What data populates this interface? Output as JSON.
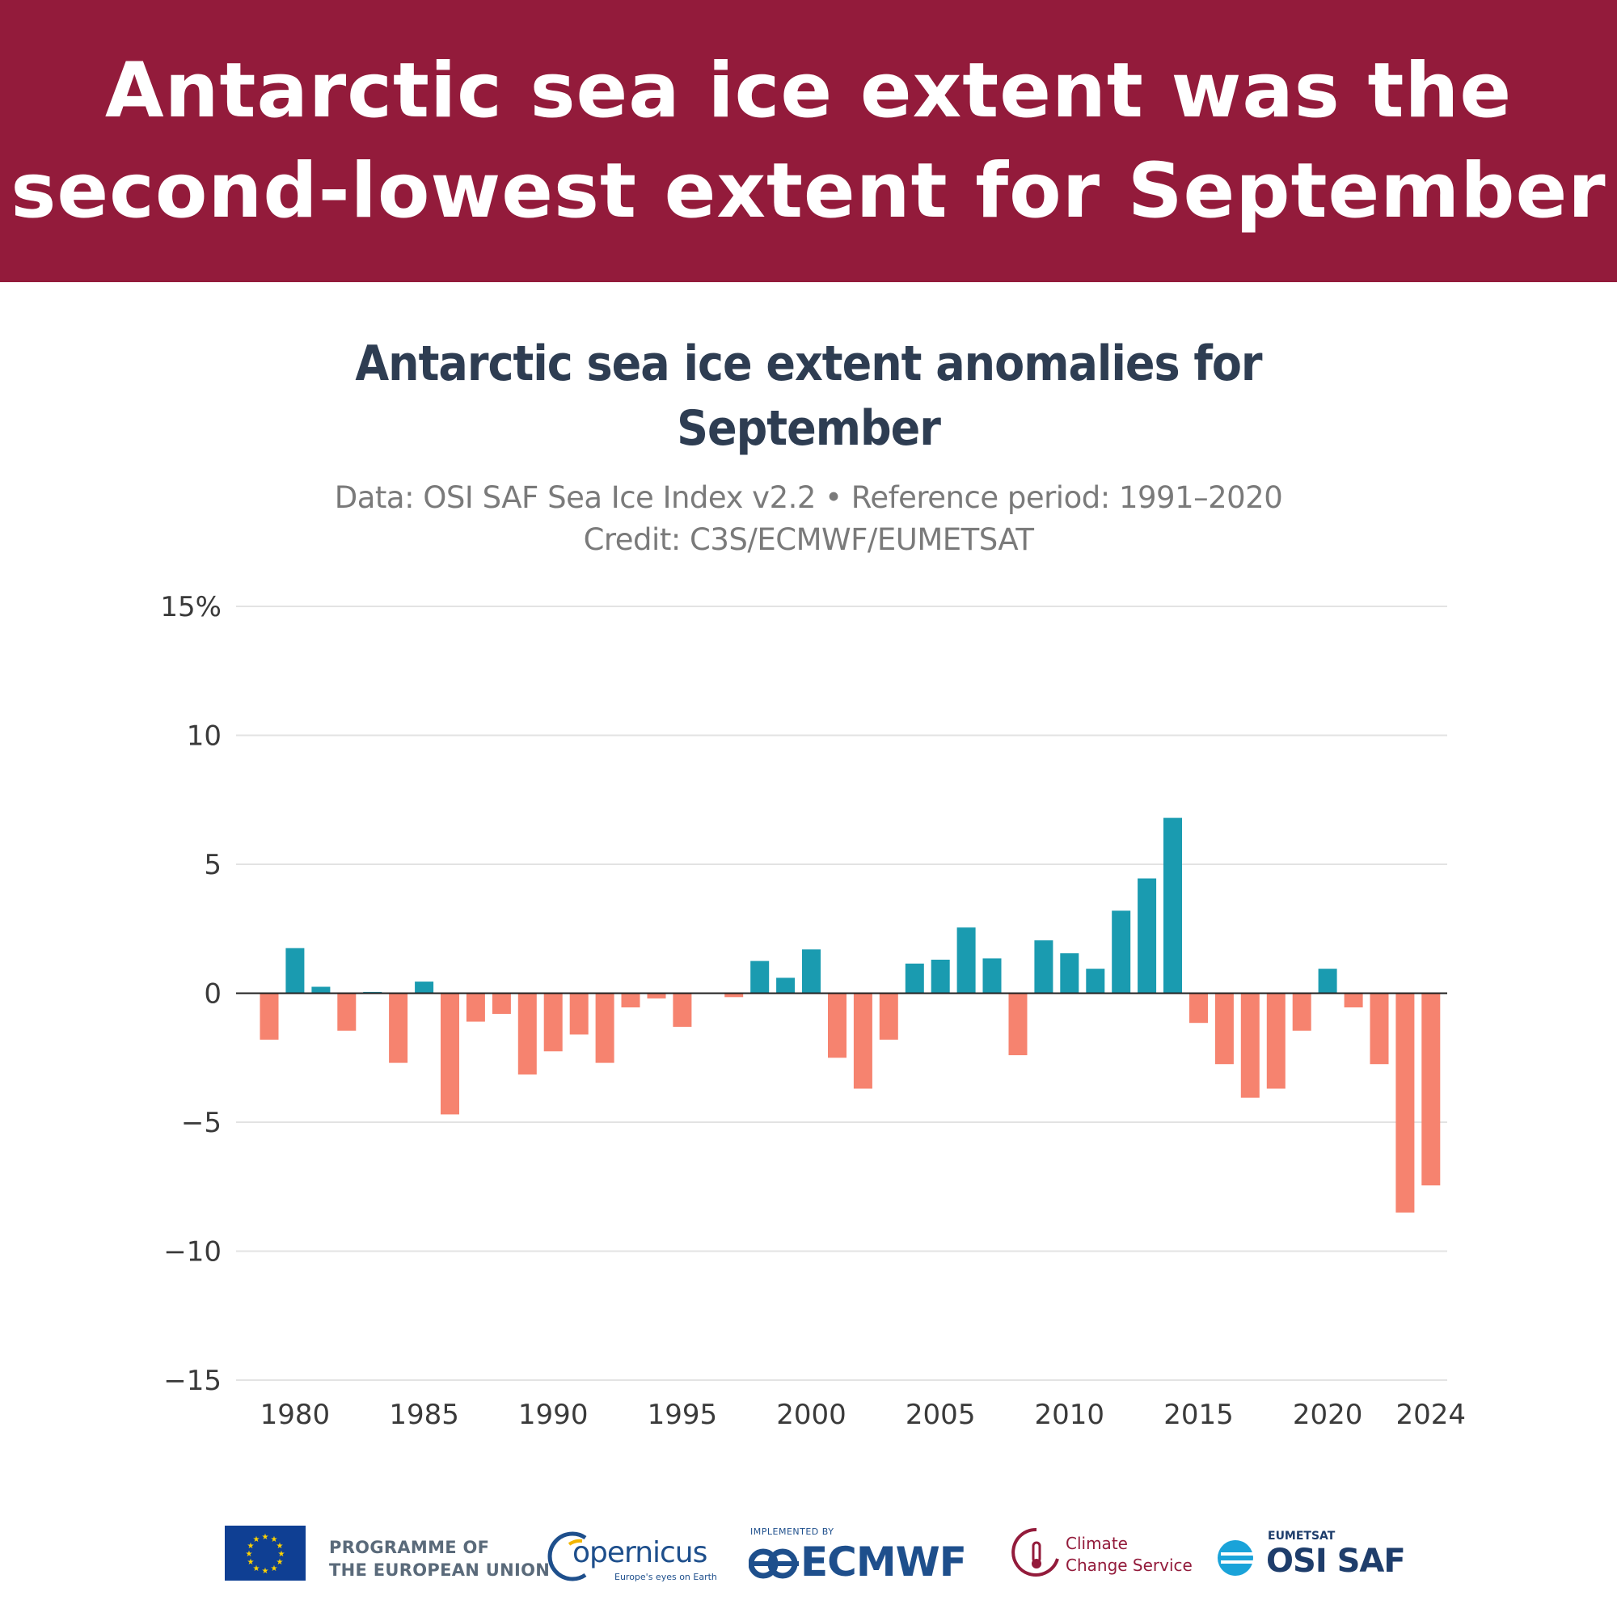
{
  "banner": {
    "line1": "Antarctic sea ice extent was the",
    "line2": "second-lowest extent for September",
    "color": "#931b3b"
  },
  "chart_data": {
    "type": "bar",
    "title_line1": "Antarctic sea ice extent anomalies for",
    "title_line2": "September",
    "subtitle_line1": "Data: OSI SAF Sea Ice Index v2.2 • Reference period: 1991–2020",
    "subtitle_line2": "Credit: C3S/ECMWF/EUMETSAT",
    "xlabel": "",
    "ylabel": "",
    "ylim": [
      -15,
      15
    ],
    "y_ticks": [
      15,
      10,
      5,
      0,
      -5,
      -10,
      -15
    ],
    "y_tick_labels": [
      "15%",
      "10",
      "5",
      "0",
      "−5",
      "−10",
      "−15"
    ],
    "x_tick_labels": [
      "1980",
      "1985",
      "1990",
      "1995",
      "2000",
      "2005",
      "2010",
      "2015",
      "2020",
      "2024"
    ],
    "positive_color": "#1a9bb0",
    "negative_color": "#f6836f",
    "categories": [
      "1979",
      "1980",
      "1981",
      "1982",
      "1983",
      "1984",
      "1985",
      "1986",
      "1987",
      "1988",
      "1989",
      "1990",
      "1991",
      "1992",
      "1993",
      "1994",
      "1995",
      "1996",
      "1997",
      "1998",
      "1999",
      "2000",
      "2001",
      "2002",
      "2003",
      "2004",
      "2005",
      "2006",
      "2007",
      "2008",
      "2009",
      "2010",
      "2011",
      "2012",
      "2013",
      "2014",
      "2015",
      "2016",
      "2017",
      "2018",
      "2019",
      "2020",
      "2021",
      "2022",
      "2023",
      "2024"
    ],
    "values": [
      -1.8,
      1.75,
      0.25,
      -1.45,
      0.05,
      -2.7,
      0.45,
      -4.7,
      -1.1,
      -0.8,
      -3.15,
      -2.25,
      -1.6,
      -2.7,
      -0.55,
      -0.2,
      -1.3,
      0.0,
      -0.15,
      1.25,
      0.6,
      1.7,
      -2.5,
      -3.7,
      -1.8,
      1.15,
      1.3,
      2.55,
      1.35,
      -2.4,
      2.05,
      1.55,
      0.95,
      3.2,
      4.45,
      6.8,
      -1.15,
      -2.75,
      -4.05,
      -3.7,
      -1.45,
      0.95,
      -0.55,
      -2.75,
      -8.5,
      -7.45
    ]
  },
  "logos": {
    "eu_text_line1": "PROGRAMME OF",
    "eu_text_line2": "THE EUROPEAN UNION",
    "copernicus_text": "opernicus",
    "copernicus_tagline": "Europe's eyes on Earth",
    "ecmwf_small": "IMPLEMENTED BY",
    "ecmwf_text": "ECMWF",
    "ccs_line1": "Climate",
    "ccs_line2": "Change Service",
    "osi_small": "EUMETSAT",
    "osi_text": "OSI SAF"
  }
}
